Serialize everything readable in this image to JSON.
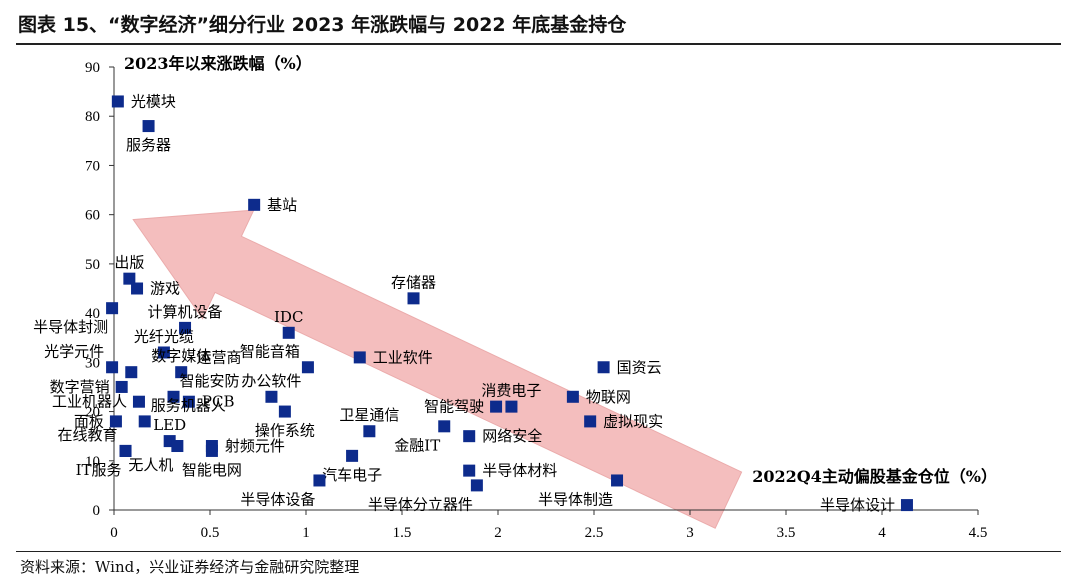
{
  "header": {
    "title": "图表 15、“数字经济”细分行业 2023 年涨跌幅与 2022 年底基金持仓"
  },
  "footer": {
    "source": "资料来源：Wind，兴业证券经济与金融研究院整理"
  },
  "chart_data": {
    "type": "scatter",
    "title": "",
    "xlabel": "2022Q4主动偏股基金仓位（%）",
    "ylabel": "2023年以来涨跌幅（%）",
    "xlim": [
      0,
      4.5
    ],
    "ylim": [
      0,
      90
    ],
    "xticks": [
      0,
      0.5,
      1,
      1.5,
      2,
      2.5,
      3,
      3.5,
      4,
      4.5
    ],
    "yticks": [
      0,
      10,
      20,
      30,
      40,
      50,
      60,
      70,
      80,
      90
    ],
    "xtick_labels": [
      "0",
      "0.5",
      "1",
      "1.5",
      "2",
      "2.5",
      "3",
      "3.5",
      "4",
      "4.5"
    ],
    "ytick_labels": [
      "0",
      "10",
      "20",
      "30",
      "40",
      "50",
      "60",
      "70",
      "80",
      "90"
    ],
    "grid": false,
    "marker_color": "#0d2b8c",
    "annotation": {
      "shape": "arrow",
      "color": "#f3b8b8",
      "from": [
        3.2,
        2
      ],
      "to": [
        0.1,
        59
      ]
    },
    "points": [
      {
        "label": "光模块",
        "x": 0.02,
        "y": 83,
        "side": "right"
      },
      {
        "label": "服务器",
        "x": 0.18,
        "y": 78,
        "side": "below"
      },
      {
        "label": "基站",
        "x": 0.73,
        "y": 62,
        "side": "right"
      },
      {
        "label": "出版",
        "x": 0.08,
        "y": 47,
        "side": "above"
      },
      {
        "label": "游戏",
        "x": 0.12,
        "y": 45,
        "side": "right"
      },
      {
        "label": "半导体封测",
        "x": -0.01,
        "y": 41,
        "side": "belowleft"
      },
      {
        "label": "计算机设备",
        "x": 0.37,
        "y": 37,
        "side": "above"
      },
      {
        "label": "存储器",
        "x": 1.56,
        "y": 43,
        "side": "above"
      },
      {
        "label": "IDC",
        "x": 0.91,
        "y": 36,
        "side": "above"
      },
      {
        "label": "光纤光缆",
        "x": 0.26,
        "y": 32,
        "side": "above"
      },
      {
        "label": "光学元件",
        "x": -0.01,
        "y": 29,
        "side": "aboveleft"
      },
      {
        "label": "数字媒体",
        "x": 0.35,
        "y": 28,
        "side": "above"
      },
      {
        "label": "智能音箱",
        "x": 1.01,
        "y": 29,
        "side": "aboveleft"
      },
      {
        "label": "工业软件",
        "x": 1.28,
        "y": 31,
        "side": "right"
      },
      {
        "label": "国资云",
        "x": 2.55,
        "y": 29,
        "side": "right"
      },
      {
        "label": "数字营销",
        "x": 0.04,
        "y": 25,
        "side": "left"
      },
      {
        "label": "运营商",
        "x": 0.09,
        "y": 28,
        "side": "hidden"
      },
      {
        "label": "智能安防",
        "x": 0.31,
        "y": 23,
        "side": "aboveright"
      },
      {
        "label": "PCB",
        "x": 0.39,
        "y": 22,
        "side": "right"
      },
      {
        "label": "工业机器人",
        "x": 0.13,
        "y": 22,
        "side": "left"
      },
      {
        "label": "办公软件",
        "x": 0.82,
        "y": 23,
        "side": "above"
      },
      {
        "label": "消费电子",
        "x": 2.07,
        "y": 21,
        "side": "above"
      },
      {
        "label": "物联网",
        "x": 2.39,
        "y": 23,
        "side": "right"
      },
      {
        "label": "智能驾驶",
        "x": 1.99,
        "y": 21,
        "side": "left"
      },
      {
        "label": "服务机器人",
        "x": 0.16,
        "y": 18,
        "side": "aboveright"
      },
      {
        "label": "操作系统",
        "x": 0.89,
        "y": 20,
        "side": "below"
      },
      {
        "label": "面板",
        "x": 0.01,
        "y": 18,
        "side": "left"
      },
      {
        "label": "卫星通信",
        "x": 1.33,
        "y": 16,
        "side": "above"
      },
      {
        "label": "金融IT",
        "x": 1.72,
        "y": 17,
        "side": "belowleft"
      },
      {
        "label": "虚拟现实",
        "x": 2.48,
        "y": 18,
        "side": "right"
      },
      {
        "label": "LED",
        "x": 0.29,
        "y": 14,
        "side": "above"
      },
      {
        "label": "在线教育",
        "x": 0.06,
        "y": 12,
        "side": "aboveleft"
      },
      {
        "label": "射频元件",
        "x": 0.51,
        "y": 13,
        "side": "right"
      },
      {
        "label": "网络安全",
        "x": 1.85,
        "y": 15,
        "side": "right"
      },
      {
        "label": "无人机",
        "x": 0.33,
        "y": 13,
        "side": "belowleft"
      },
      {
        "label": "智能电网",
        "x": 0.51,
        "y": 12,
        "side": "below"
      },
      {
        "label": "IT服务",
        "x": 0.06,
        "y": 12,
        "side": "belowleft"
      },
      {
        "label": "汽车电子",
        "x": 1.24,
        "y": 11,
        "side": "below"
      },
      {
        "label": "半导体材料",
        "x": 1.85,
        "y": 8,
        "side": "right"
      },
      {
        "label": "半导体设备",
        "x": 1.07,
        "y": 6,
        "side": "belowleft"
      },
      {
        "label": "半导体分立器件",
        "x": 1.89,
        "y": 5,
        "side": "belowleft"
      },
      {
        "label": "半导体制造",
        "x": 2.62,
        "y": 6,
        "side": "belowleft"
      },
      {
        "label": "半导体设计",
        "x": 4.13,
        "y": 1,
        "side": "left"
      }
    ]
  }
}
